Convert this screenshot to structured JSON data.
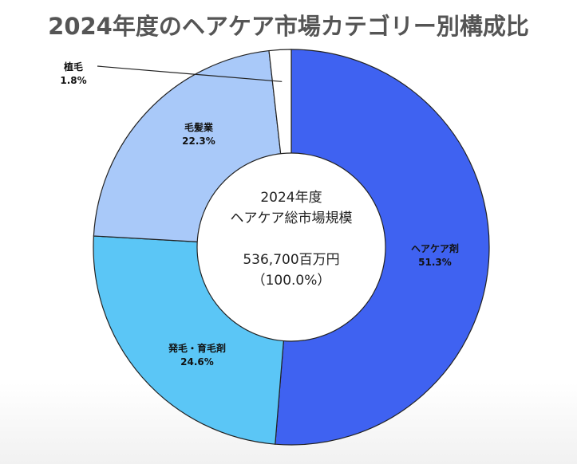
{
  "chart_data": {
    "type": "pie",
    "title": "2024年度のヘアケア市場カテゴリー別構成比",
    "series": [
      {
        "name": "ヘアケア剤",
        "percent_label": "51.3%",
        "value": 51.3,
        "color": "#3f62f1"
      },
      {
        "name": "発毛・育毛剤",
        "percent_label": "24.6%",
        "value": 24.6,
        "color": "#5bc6f6"
      },
      {
        "name": "毛髪業",
        "percent_label": "22.3%",
        "value": 22.3,
        "color": "#a9c9f9"
      },
      {
        "name": "植毛",
        "percent_label": "1.8%",
        "value": 1.8,
        "color": "#ffffff"
      }
    ],
    "center": {
      "line1": "2024年度",
      "line2": "ヘアケア総市場規模",
      "line3": "536,700百万円",
      "line4": "（100.0%）"
    },
    "legend": "none"
  }
}
